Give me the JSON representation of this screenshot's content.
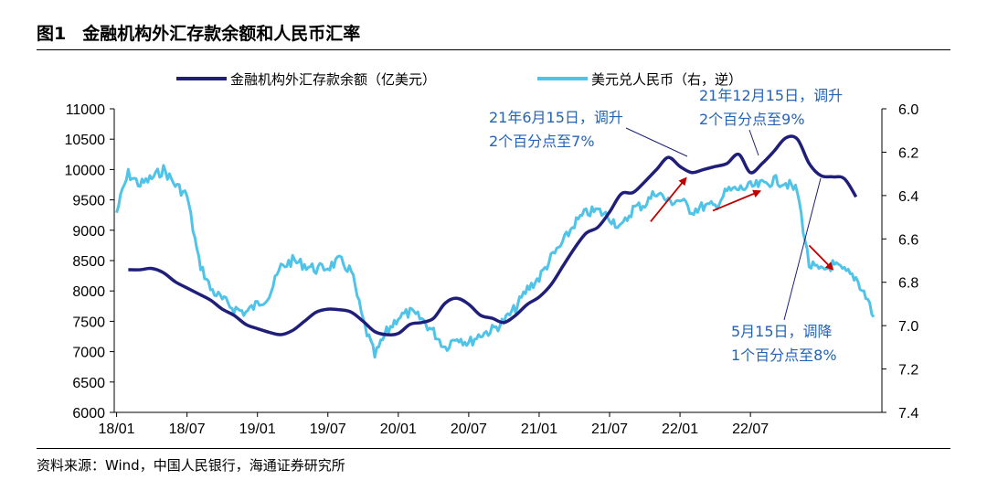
{
  "figure": {
    "number": "图1",
    "title": "金融机构外汇存款余额和人民币汇率",
    "source": "资料来源：Wind，中国人民银行，海通证券研究所"
  },
  "chart_data": {
    "type": "line",
    "x_tick_labels": [
      "18/01",
      "18/07",
      "19/01",
      "19/07",
      "20/01",
      "20/07",
      "21/01",
      "21/07",
      "22/01",
      "22/07"
    ],
    "left_axis": {
      "ticks": [
        6000,
        6500,
        7000,
        7500,
        8000,
        8500,
        9000,
        9500,
        10000,
        10500,
        11000
      ],
      "range": [
        6000,
        11000
      ]
    },
    "right_axis": {
      "ticks": [
        "6.0",
        "6.2",
        "6.4",
        "6.6",
        "6.8",
        "7.0",
        "7.2",
        "7.4"
      ],
      "range": [
        6.0,
        7.4
      ],
      "inverted": true
    },
    "legend": [
      {
        "label": "金融机构外汇存款余额（亿美元）",
        "color": "#1f1f7a"
      },
      {
        "label": "美元兑人民币（右，逆）",
        "color": "#4fc3e8"
      }
    ],
    "series": [
      {
        "name": "金融机构外汇存款余额（亿美元）",
        "axis": "left",
        "color": "#1f1f7a",
        "points": [
          [
            1,
            8350
          ],
          [
            2,
            8350
          ],
          [
            3,
            8370
          ],
          [
            4,
            8300
          ],
          [
            5,
            8150
          ],
          [
            6,
            8050
          ],
          [
            7,
            7950
          ],
          [
            8,
            7850
          ],
          [
            9,
            7700
          ],
          [
            10,
            7600
          ],
          [
            11,
            7450
          ],
          [
            12,
            7380
          ],
          [
            13,
            7320
          ],
          [
            14,
            7280
          ],
          [
            15,
            7350
          ],
          [
            16,
            7500
          ],
          [
            17,
            7650
          ],
          [
            18,
            7700
          ],
          [
            19,
            7690
          ],
          [
            20,
            7650
          ],
          [
            21,
            7500
          ],
          [
            22,
            7330
          ],
          [
            23,
            7280
          ],
          [
            24,
            7300
          ],
          [
            25,
            7450
          ],
          [
            26,
            7480
          ],
          [
            27,
            7550
          ],
          [
            28,
            7800
          ],
          [
            29,
            7880
          ],
          [
            30,
            7780
          ],
          [
            31,
            7600
          ],
          [
            32,
            7550
          ],
          [
            33,
            7480
          ],
          [
            34,
            7600
          ],
          [
            35,
            7780
          ],
          [
            36,
            7900
          ],
          [
            37,
            8100
          ],
          [
            38,
            8400
          ],
          [
            39,
            8700
          ],
          [
            40,
            8950
          ],
          [
            41,
            9050
          ],
          [
            42,
            9300
          ],
          [
            43,
            9600
          ],
          [
            44,
            9620
          ],
          [
            45,
            9800
          ],
          [
            46,
            10000
          ],
          [
            47,
            10200
          ],
          [
            48,
            10050
          ],
          [
            49,
            9950
          ],
          [
            50,
            10000
          ],
          [
            51,
            10050
          ],
          [
            52,
            10100
          ],
          [
            53,
            10250
          ],
          [
            54,
            9950
          ],
          [
            55,
            10100
          ],
          [
            56,
            10300
          ],
          [
            57,
            10520
          ],
          [
            58,
            10500
          ],
          [
            59,
            10100
          ],
          [
            60,
            9900
          ],
          [
            61,
            9880
          ],
          [
            62,
            9850
          ],
          [
            63,
            9550
          ]
        ]
      },
      {
        "name": "美元兑人民币（右，逆）",
        "axis": "right",
        "color": "#4fc3e8",
        "points": [
          [
            0,
            6.48
          ],
          [
            0.5,
            6.38
          ],
          [
            1,
            6.3
          ],
          [
            2,
            6.35
          ],
          [
            3,
            6.32
          ],
          [
            4,
            6.28
          ],
          [
            5,
            6.35
          ],
          [
            6,
            6.4
          ],
          [
            7,
            6.7
          ],
          [
            8,
            6.83
          ],
          [
            9,
            6.88
          ],
          [
            10,
            6.92
          ],
          [
            11,
            6.94
          ],
          [
            12,
            6.9
          ],
          [
            13,
            6.86
          ],
          [
            14,
            6.73
          ],
          [
            15,
            6.7
          ],
          [
            16,
            6.72
          ],
          [
            17,
            6.74
          ],
          [
            18,
            6.73
          ],
          [
            19,
            6.7
          ],
          [
            20,
            6.75
          ],
          [
            21,
            6.98
          ],
          [
            22,
            7.14
          ],
          [
            23,
            7.03
          ],
          [
            24,
            6.96
          ],
          [
            25,
            6.94
          ],
          [
            26,
            6.97
          ],
          [
            27,
            7.03
          ],
          [
            28,
            7.1
          ],
          [
            29,
            7.05
          ],
          [
            30,
            7.08
          ],
          [
            31,
            7.04
          ],
          [
            32,
            7.02
          ],
          [
            33,
            6.98
          ],
          [
            34,
            6.92
          ],
          [
            35,
            6.83
          ],
          [
            36,
            6.78
          ],
          [
            37,
            6.69
          ],
          [
            38,
            6.62
          ],
          [
            39,
            6.53
          ],
          [
            40,
            6.48
          ],
          [
            41,
            6.47
          ],
          [
            42,
            6.5
          ],
          [
            43,
            6.55
          ],
          [
            44,
            6.46
          ],
          [
            45,
            6.44
          ],
          [
            46,
            6.38
          ],
          [
            47,
            6.43
          ],
          [
            48,
            6.42
          ],
          [
            49,
            6.47
          ],
          [
            50,
            6.45
          ],
          [
            51,
            6.45
          ],
          [
            52,
            6.38
          ],
          [
            53,
            6.37
          ],
          [
            54,
            6.36
          ],
          [
            55,
            6.35
          ],
          [
            56,
            6.33
          ],
          [
            57,
            6.34
          ],
          [
            58,
            6.38
          ],
          [
            59,
            6.72
          ],
          [
            60,
            6.75
          ],
          [
            61,
            6.72
          ],
          [
            62,
            6.75
          ],
          [
            63,
            6.78
          ],
          [
            64,
            6.88
          ],
          [
            64.5,
            6.96
          ]
        ]
      }
    ],
    "annotations": [
      {
        "lines": [
          "21年6月15日，调升",
          "2个百分点至7%"
        ]
      },
      {
        "lines": [
          "21年12月15日，调升",
          "2个百分点至9%"
        ]
      },
      {
        "lines": [
          "5月15日，调降",
          "1个百分点至8%"
        ]
      }
    ],
    "arrows": [
      {
        "from": [
          45.5,
          6.52
        ],
        "to": [
          48.5,
          6.32
        ]
      },
      {
        "from": [
          50.8,
          6.47
        ],
        "to": [
          54.8,
          6.38
        ]
      },
      {
        "from": [
          59,
          6.63
        ],
        "to": [
          61,
          6.74
        ]
      }
    ]
  }
}
